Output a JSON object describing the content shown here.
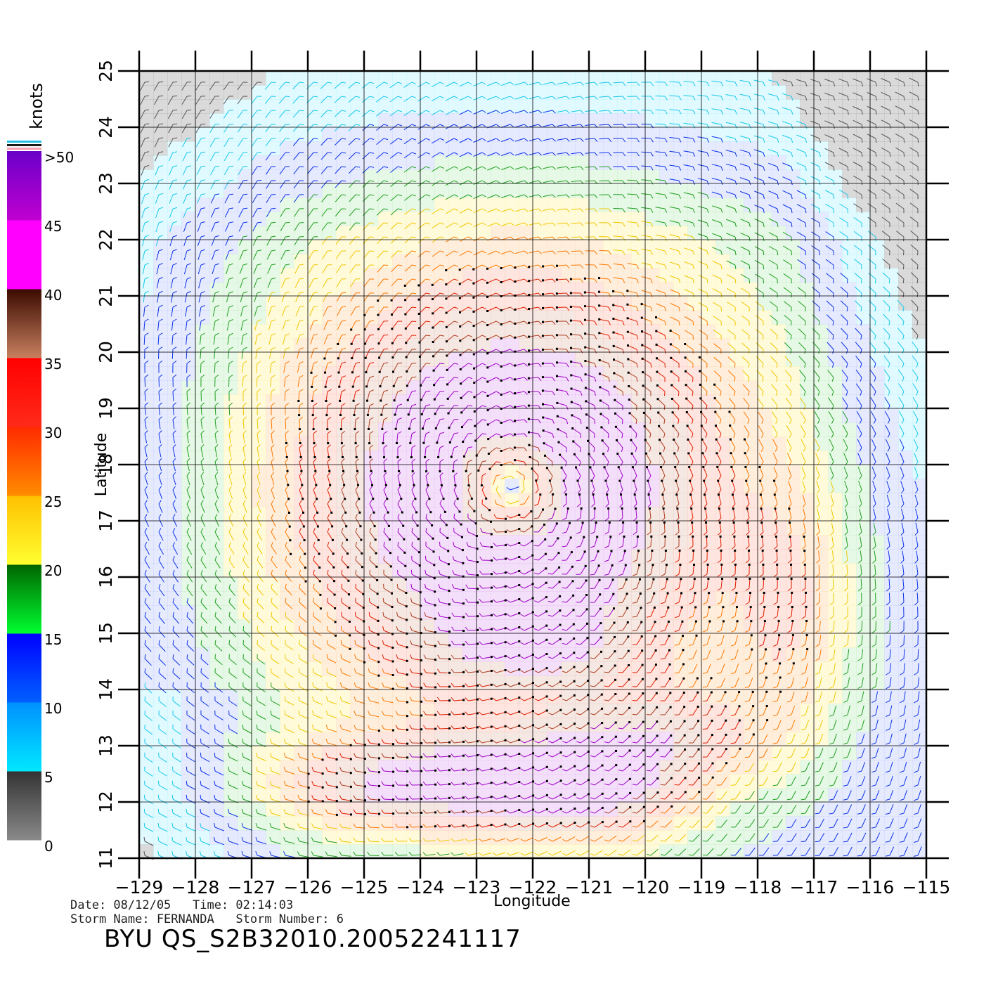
{
  "chart_data": {
    "type": "wind-barb-map",
    "xlabel": "Longitude",
    "ylabel": "Latitude",
    "xlim": [
      -129,
      -115
    ],
    "ylim": [
      11,
      25
    ],
    "x_ticks": [
      "−129",
      "−128",
      "−127",
      "−126",
      "−125",
      "−124",
      "−123",
      "−122",
      "−121",
      "−120",
      "−119",
      "−118",
      "−117",
      "−116",
      "−115"
    ],
    "y_ticks": [
      "11",
      "12",
      "13",
      "14",
      "15",
      "16",
      "17",
      "18",
      "19",
      "20",
      "21",
      "22",
      "23",
      "24",
      "25"
    ],
    "grid": true,
    "storm_center": {
      "lon": -122.4,
      "lat": 17.6
    },
    "colorbar": {
      "unit": "knots",
      "labels": [
        ">50",
        "45",
        "40",
        "35",
        "30",
        "25",
        "20",
        "15",
        "10",
        "5",
        "0"
      ],
      "segments": [
        {
          "min": 0,
          "max": 5,
          "color_top": "#333333",
          "color_bottom": "#8a8a8a"
        },
        {
          "min": 5,
          "max": 10,
          "color_top": "#0090ff",
          "color_bottom": "#00e8ff"
        },
        {
          "min": 10,
          "max": 15,
          "color_top": "#0000ff",
          "color_bottom": "#0060ff"
        },
        {
          "min": 15,
          "max": 20,
          "color_top": "#006400",
          "color_bottom": "#00ff30"
        },
        {
          "min": 20,
          "max": 25,
          "color_top": "#ffc000",
          "color_bottom": "#ffff30"
        },
        {
          "min": 25,
          "max": 30,
          "color_top": "#ff2a00",
          "color_bottom": "#ff8c00"
        },
        {
          "min": 30,
          "max": 35,
          "color_top": "#ff0000",
          "color_bottom": "#ff2a1a"
        },
        {
          "min": 35,
          "max": 40,
          "color_top": "#3a0a00",
          "color_bottom": "#c88060"
        },
        {
          "min": 40,
          "max": 45,
          "color_top": "#ff00ff",
          "color_bottom": "#ff00ff"
        },
        {
          "min": 45,
          "max": 50,
          "color_top": "#6a00c8",
          "color_bottom": "#c000d0"
        }
      ]
    }
  },
  "info": {
    "date_line": "Date: 08/12/05   Time: 02:14:03",
    "storm_line": "Storm Name: FERNANDA   Storm Number: 6",
    "title": "BYU QS_S2B32010.20052241117"
  }
}
